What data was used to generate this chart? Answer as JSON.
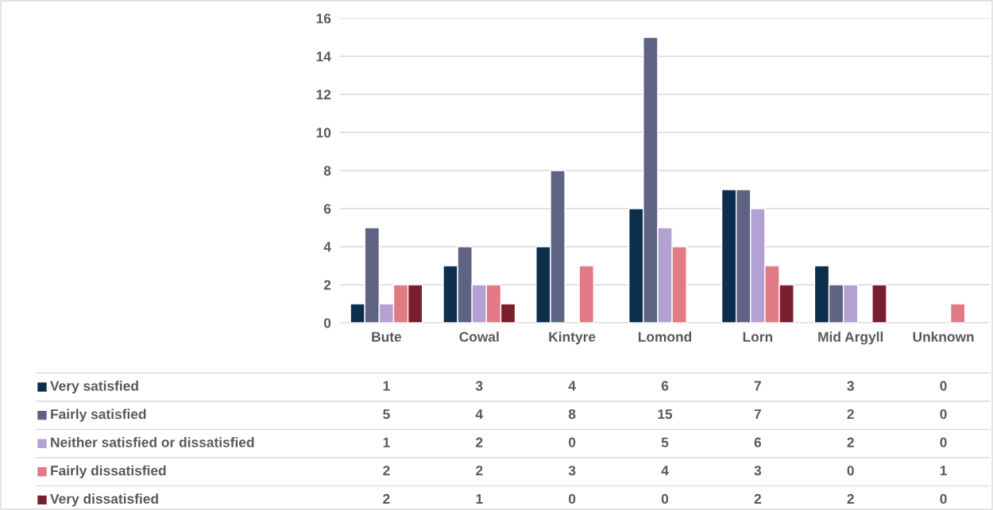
{
  "chart_data": {
    "type": "bar",
    "categories": [
      "Bute",
      "Cowal",
      "Kintyre",
      "Lomond",
      "Lorn",
      "Mid Argyll",
      "Unknown"
    ],
    "series": [
      {
        "name": "Very satisfied",
        "color": "#0b2f4c",
        "values": [
          1,
          3,
          4,
          6,
          7,
          3,
          0
        ]
      },
      {
        "name": "Fairly satisfied",
        "color": "#5e6383",
        "values": [
          5,
          4,
          8,
          15,
          7,
          2,
          0
        ]
      },
      {
        "name": "Neither satisfied or dissatisfied",
        "color": "#b3a1d3",
        "values": [
          1,
          2,
          0,
          5,
          6,
          2,
          0
        ]
      },
      {
        "name": "Fairly dissatisfied",
        "color": "#e07a84",
        "values": [
          2,
          2,
          3,
          4,
          3,
          0,
          1
        ]
      },
      {
        "name": "Very dissatisfied",
        "color": "#7a1f2d",
        "values": [
          2,
          1,
          0,
          0,
          2,
          2,
          0
        ]
      }
    ],
    "ylim": [
      0,
      16
    ],
    "yticks": [
      0,
      2,
      4,
      6,
      8,
      10,
      12,
      14,
      16
    ],
    "grid": "y",
    "legend": "bottom",
    "data_labels": true
  }
}
